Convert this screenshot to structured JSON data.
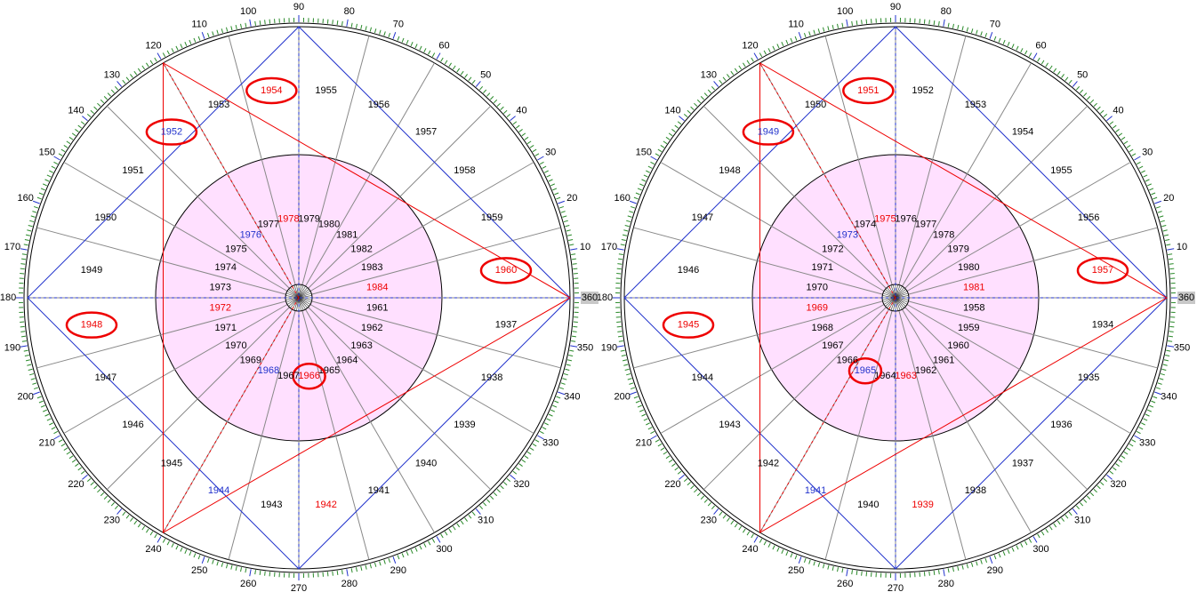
{
  "degree_labels": [
    10,
    20,
    30,
    40,
    50,
    60,
    70,
    80,
    90,
    100,
    110,
    120,
    130,
    140,
    150,
    160,
    170,
    180,
    190,
    200,
    210,
    220,
    230,
    240,
    250,
    260,
    270,
    280,
    290,
    300,
    310,
    320,
    330,
    340,
    350,
    360
  ],
  "wheels": [
    {
      "outer_years": [
        1937,
        1938,
        1939,
        1940,
        1941,
        1942,
        1943,
        1944,
        1945,
        1946,
        1947,
        1948,
        1949,
        1950,
        1951,
        1952,
        1953,
        1954,
        1955,
        1956,
        1957,
        1958,
        1959,
        1960
      ],
      "inner_years": [
        1961,
        1962,
        1963,
        1964,
        1965,
        1966,
        1967,
        1968,
        1969,
        1970,
        1971,
        1972,
        1973,
        1974,
        1975,
        1976,
        1977,
        1978,
        1979,
        1980,
        1981,
        1982,
        1983,
        1984
      ],
      "red": [
        1942,
        1948,
        1954,
        1960,
        1966,
        1972,
        1978,
        1984
      ],
      "blue": [
        1944,
        1952,
        1968,
        1976
      ],
      "circled": [
        1954,
        1952,
        1960,
        1948,
        1966
      ]
    },
    {
      "outer_years": [
        1934,
        1935,
        1936,
        1937,
        1938,
        1939,
        1940,
        1941,
        1942,
        1943,
        1944,
        1945,
        1946,
        1947,
        1948,
        1949,
        1950,
        1951,
        1952,
        1953,
        1954,
        1955,
        1956,
        1957
      ],
      "inner_years": [
        1958,
        1959,
        1960,
        1961,
        1962,
        1963,
        1964,
        1965,
        1966,
        1967,
        1968,
        1969,
        1970,
        1971,
        1972,
        1973,
        1974,
        1975,
        1976,
        1977,
        1978,
        1979,
        1980,
        1981
      ],
      "red": [
        1939,
        1945,
        1951,
        1957,
        1963,
        1969,
        1975,
        1981
      ],
      "blue": [
        1941,
        1949,
        1965,
        1973
      ],
      "circled": [
        1951,
        1949,
        1957,
        1945,
        1965
      ]
    }
  ]
}
